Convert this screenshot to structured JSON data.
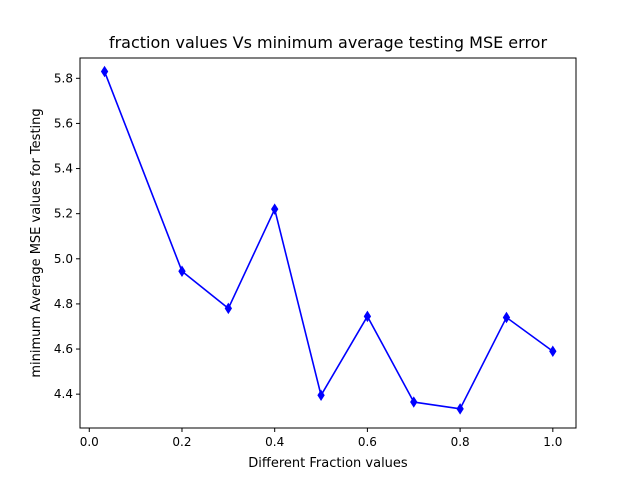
{
  "chart_data": {
    "type": "line",
    "title": "fraction values Vs minimum average testing MSE error",
    "xlabel": "Different Fraction values",
    "ylabel": "minimum Average MSE values for Testing",
    "xlim": [
      -0.02,
      1.05
    ],
    "ylim": [
      4.25,
      5.89
    ],
    "x_ticks": [
      "0.0",
      "0.2",
      "0.4",
      "0.6",
      "0.8",
      "1.0"
    ],
    "y_ticks": [
      "4.4",
      "4.6",
      "4.8",
      "5.0",
      "5.2",
      "5.4",
      "5.6",
      "5.8"
    ],
    "grid": false,
    "marker": "thin_diamond",
    "series": [
      {
        "color": "#0000ff",
        "x": [
          0.033,
          0.2,
          0.3,
          0.4,
          0.5,
          0.6,
          0.7,
          0.8,
          0.9,
          1.0
        ],
        "y": [
          5.83,
          4.945,
          4.78,
          5.22,
          4.395,
          4.745,
          4.365,
          4.335,
          4.74,
          4.59
        ]
      }
    ]
  }
}
